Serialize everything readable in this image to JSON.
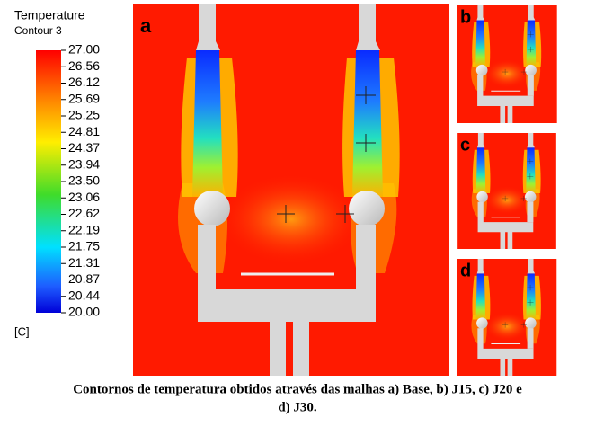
{
  "legend": {
    "title": "Temperature",
    "subtitle": "Contour 3",
    "ticks": [
      "27.00",
      "26.56",
      "26.12",
      "25.69",
      "25.25",
      "24.81",
      "24.37",
      "23.94",
      "23.50",
      "23.06",
      "22.62",
      "22.19",
      "21.75",
      "21.31",
      "20.87",
      "20.44",
      "20.00"
    ],
    "unit": "[C]"
  },
  "panels": [
    {
      "label": "a"
    },
    {
      "label": "b"
    },
    {
      "label": "c"
    },
    {
      "label": "d"
    }
  ],
  "caption": {
    "line1": "Contornos de temperatura obtidos através das malhas a) Base, b) J15, c) J20 e",
    "line2": "d)  J30."
  }
}
